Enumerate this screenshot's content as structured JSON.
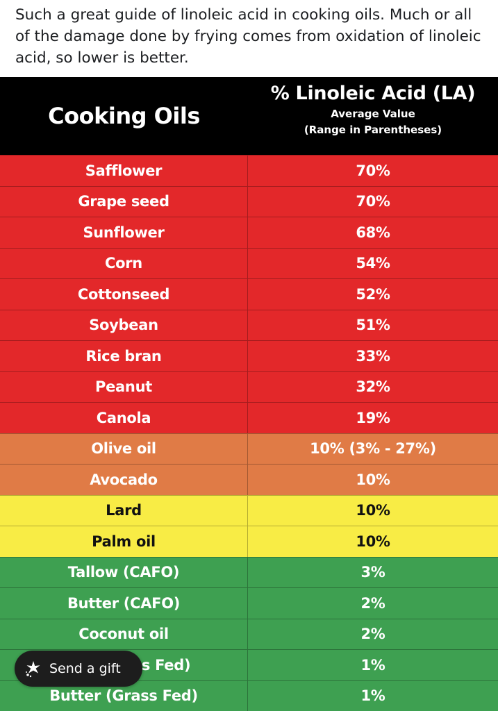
{
  "post": {
    "text": "Such a great guide of linoleic acid in cooking oils. Much or all of the damage done by frying comes from oxidation of linoleic acid, so lower is better."
  },
  "table": {
    "header_left": "Cooking Oils",
    "header_right_title": "% Linoleic Acid (LA)",
    "header_right_sub1": "Average Value",
    "header_right_sub2": "(Range in Parentheses)",
    "rows": [
      {
        "oil": "Safflower",
        "la": "70%",
        "color": "#e3282a"
      },
      {
        "oil": "Grape seed",
        "la": "70%",
        "color": "#e3282a"
      },
      {
        "oil": "Sunflower",
        "la": "68%",
        "color": "#e3282a"
      },
      {
        "oil": "Corn",
        "la": "54%",
        "color": "#e3282a"
      },
      {
        "oil": "Cottonseed",
        "la": "52%",
        "color": "#e3282a"
      },
      {
        "oil": "Soybean",
        "la": "51%",
        "color": "#e3282a"
      },
      {
        "oil": "Rice bran",
        "la": "33%",
        "color": "#e3282a"
      },
      {
        "oil": "Peanut",
        "la": "32%",
        "color": "#e3282a"
      },
      {
        "oil": "Canola",
        "la": "19%",
        "color": "#e3282a"
      },
      {
        "oil": "Olive oil",
        "la": "10% (3% - 27%)",
        "color": "#e07b46"
      },
      {
        "oil": "Avocado",
        "la": "10%",
        "color": "#e07b46"
      },
      {
        "oil": "Lard",
        "la": "10%",
        "color": "#f8ec45"
      },
      {
        "oil": "Palm oil",
        "la": "10%",
        "color": "#f8ec45"
      },
      {
        "oil": "Tallow (CAFO)",
        "la": "3%",
        "color": "#3ea051"
      },
      {
        "oil": "Butter (CAFO)",
        "la": "2%",
        "color": "#3ea051"
      },
      {
        "oil": "Coconut oil",
        "la": "2%",
        "color": "#3ea051"
      },
      {
        "oil": "ss Fed)",
        "la": "1%",
        "color": "#3ea051"
      },
      {
        "oil": "Butter (Grass Fed)",
        "la": "1%",
        "color": "#3ea051"
      }
    ]
  },
  "gift_button": {
    "label": "Send a gift",
    "icon": "gift-sparkle-icon"
  }
}
